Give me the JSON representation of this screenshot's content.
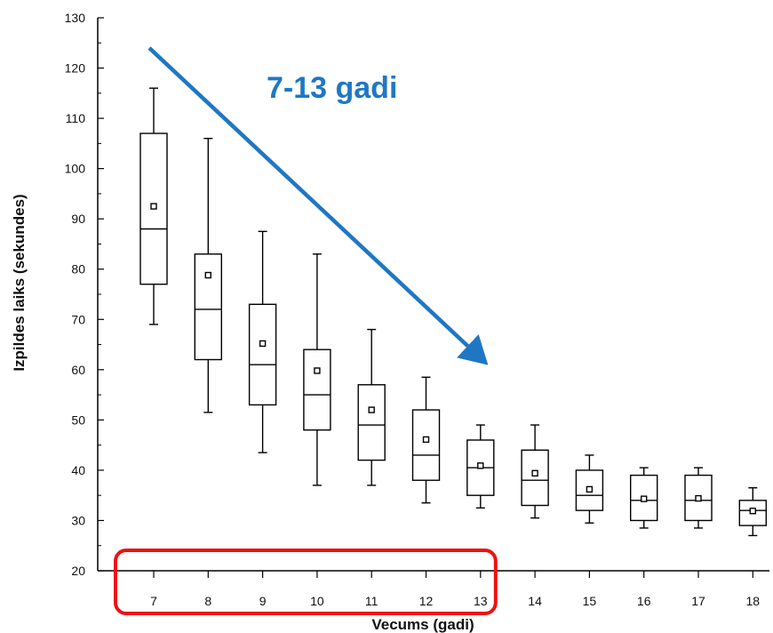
{
  "chart_data": {
    "type": "box",
    "xlabel": "Vecums (gadi)",
    "ylabel": "Izpildes laiks (sekundes)",
    "ylim": [
      20,
      130
    ],
    "yticks": [
      20,
      30,
      40,
      50,
      60,
      70,
      80,
      90,
      100,
      110,
      120,
      130
    ],
    "categories": [
      "7",
      "8",
      "9",
      "10",
      "11",
      "12",
      "13",
      "14",
      "15",
      "16",
      "17",
      "18"
    ],
    "boxes": [
      {
        "category": "7",
        "min": 69,
        "q1": 77,
        "median": 88,
        "q3": 107,
        "max": 116,
        "mean": 92.5
      },
      {
        "category": "8",
        "min": 51.5,
        "q1": 62,
        "median": 72,
        "q3": 83,
        "max": 106,
        "mean": 78.8
      },
      {
        "category": "9",
        "min": 43.5,
        "q1": 53,
        "median": 61,
        "q3": 73,
        "max": 87.5,
        "mean": 65.2
      },
      {
        "category": "10",
        "min": 37,
        "q1": 48,
        "median": 55,
        "q3": 64,
        "max": 83,
        "mean": 59.8
      },
      {
        "category": "11",
        "min": 37,
        "q1": 42,
        "median": 49,
        "q3": 57,
        "max": 68,
        "mean": 52
      },
      {
        "category": "12",
        "min": 33.5,
        "q1": 38,
        "median": 43,
        "q3": 52,
        "max": 58.5,
        "mean": 46.1
      },
      {
        "category": "13",
        "min": 32.5,
        "q1": 35,
        "median": 40.5,
        "q3": 46,
        "max": 49,
        "mean": 40.9
      },
      {
        "category": "14",
        "min": 30.5,
        "q1": 33,
        "median": 38,
        "q3": 44,
        "max": 49,
        "mean": 39.4
      },
      {
        "category": "15",
        "min": 29.5,
        "q1": 32,
        "median": 35,
        "q3": 40,
        "max": 43,
        "mean": 36.2
      },
      {
        "category": "16",
        "min": 28.5,
        "q1": 30,
        "median": 34,
        "q3": 39,
        "max": 40.5,
        "mean": 34.3
      },
      {
        "category": "17",
        "min": 28.5,
        "q1": 30,
        "median": 34,
        "q3": 39,
        "max": 40.5,
        "mean": 34.4
      },
      {
        "category": "18",
        "min": 27,
        "q1": 29,
        "median": 32,
        "q3": 34,
        "max": 36.5,
        "mean": 31.9
      }
    ],
    "annotations": [
      {
        "type": "text",
        "text": "7-13 gadi",
        "color": "#1f77c4"
      },
      {
        "type": "arrow",
        "color": "#1f77c4",
        "from": {
          "category": "7",
          "y": 124
        },
        "to": {
          "category": "13",
          "y": 62
        }
      },
      {
        "type": "highlight-box",
        "color": "#ee1111",
        "categories": [
          "7",
          "13"
        ]
      }
    ],
    "grid": false,
    "legend": "none"
  }
}
